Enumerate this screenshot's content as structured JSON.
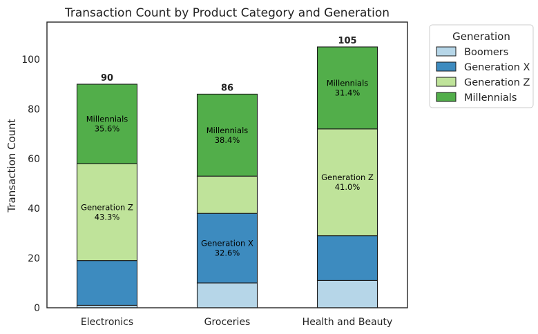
{
  "chart_data": {
    "type": "bar",
    "stacked": true,
    "title": "Transaction Count by Product Category and Generation",
    "xlabel": "",
    "ylabel": "Transaction Count",
    "ylim": [
      0,
      115
    ],
    "yticks": [
      0,
      20,
      40,
      60,
      80,
      100
    ],
    "grid": false,
    "categories": [
      "Electronics",
      "Groceries",
      "Health and Beauty"
    ],
    "series": [
      {
        "name": "Boomers",
        "color": "#b6d6e8",
        "values": [
          1,
          10,
          11
        ]
      },
      {
        "name": "Generation X",
        "color": "#3d8bbf",
        "values": [
          18,
          28,
          18
        ]
      },
      {
        "name": "Generation Z",
        "color": "#bfe39a",
        "values": [
          39,
          15,
          43
        ]
      },
      {
        "name": "Millennials",
        "color": "#52ae4a",
        "values": [
          32,
          33,
          33
        ]
      }
    ],
    "totals": [
      90,
      86,
      105
    ],
    "segment_labels": [
      {
        "category": 0,
        "series": 2,
        "name": "Generation Z",
        "pct": "43.3%"
      },
      {
        "category": 0,
        "series": 3,
        "name": "Millennials",
        "pct": "35.6%"
      },
      {
        "category": 1,
        "series": 1,
        "name": "Generation X",
        "pct": "32.6%"
      },
      {
        "category": 1,
        "series": 3,
        "name": "Millennials",
        "pct": "38.4%"
      },
      {
        "category": 2,
        "series": 2,
        "name": "Generation Z",
        "pct": "41.0%"
      },
      {
        "category": 2,
        "series": 3,
        "name": "Millennials",
        "pct": "31.4%"
      }
    ],
    "legend": {
      "title": "Generation",
      "placement": "outside-top-right"
    }
  }
}
